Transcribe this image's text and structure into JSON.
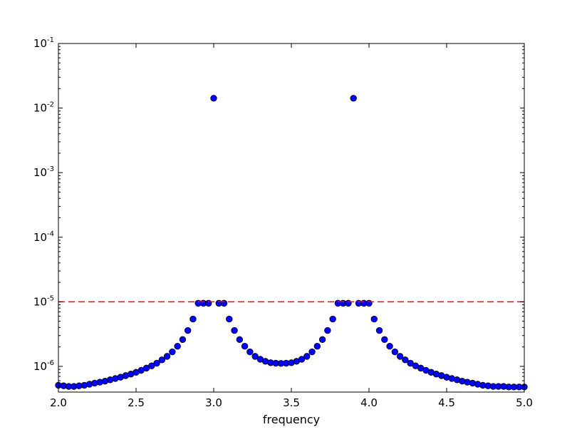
{
  "chart_data": {
    "type": "scatter",
    "title": "",
    "xlabel": "frequency",
    "ylabel": "",
    "xlim": [
      2.0,
      5.0
    ],
    "ylim": [
      4e-07,
      0.1
    ],
    "yscale": "log",
    "x_ticks": [
      "2.0",
      "2.5",
      "3.0",
      "3.5",
      "4.0",
      "4.5",
      "5.0"
    ],
    "y_ticks": [
      {
        "base": "10",
        "exp": "-6"
      },
      {
        "base": "10",
        "exp": "-5"
      },
      {
        "base": "10",
        "exp": "-4"
      },
      {
        "base": "10",
        "exp": "-3"
      },
      {
        "base": "10",
        "exp": "-2"
      },
      {
        "base": "10",
        "exp": "-1"
      }
    ],
    "grid": false,
    "colors": {
      "marker_fill": "#0000ff",
      "marker_edge": "#000000",
      "threshold_line": "#ff0000"
    },
    "threshold": {
      "y": 1e-05,
      "style": "dashed"
    },
    "series": [
      {
        "x": [
          2.0,
          2.0333,
          2.0667,
          2.1,
          2.1333,
          2.1667,
          2.2,
          2.2333,
          2.2667,
          2.3,
          2.3333,
          2.3667,
          2.4,
          2.4333,
          2.4667,
          2.5,
          2.5333,
          2.5667,
          2.6,
          2.6333,
          2.6667,
          2.7,
          2.7333,
          2.7667,
          2.8,
          2.8333,
          2.8667,
          2.9,
          2.9333,
          2.9667,
          3.0,
          3.0333,
          3.0667,
          3.1,
          3.1333,
          3.1667,
          3.2,
          3.2333,
          3.2667,
          3.3,
          3.3333,
          3.3667,
          3.4,
          3.4333,
          3.4667,
          3.5,
          3.5333,
          3.5667,
          3.6,
          3.6333,
          3.6667,
          3.7,
          3.7333,
          3.7667,
          3.8,
          3.8333,
          3.8667,
          3.9,
          3.9333,
          3.9667,
          4.0,
          4.0333,
          4.0667,
          4.1,
          4.1333,
          4.1667,
          4.2,
          4.2333,
          4.2667,
          4.3,
          4.3333,
          4.3667,
          4.4,
          4.4333,
          4.4667,
          4.5,
          4.5333,
          4.5667,
          4.6,
          4.6333,
          4.6667,
          4.7,
          4.7333,
          4.7667,
          4.8,
          4.8333,
          4.8667,
          4.9,
          4.9333,
          4.9667,
          5.0
        ],
        "y": [
          5.1e-07,
          5e-07,
          4.9e-07,
          4.9e-07,
          5e-07,
          5.1e-07,
          5.3e-07,
          5.5e-07,
          5.7e-07,
          5.9e-07,
          6.2e-07,
          6.5e-07,
          6.8e-07,
          7.2e-07,
          7.6e-07,
          8.1e-07,
          8.7e-07,
          9.4e-07,
          1.02e-06,
          1.12e-06,
          1.26e-06,
          1.43e-06,
          1.68e-06,
          2.05e-06,
          2.6e-06,
          3.6e-06,
          5.4e-06,
          9.5e-06,
          9.5e-06,
          9.5e-06,
          0.0142,
          9.5e-06,
          9.5e-06,
          5.4e-06,
          3.6e-06,
          2.6e-06,
          2.05e-06,
          1.68e-06,
          1.43e-06,
          1.29e-06,
          1.2e-06,
          1.14e-06,
          1.12e-06,
          1.11e-06,
          1.12e-06,
          1.14e-06,
          1.2e-06,
          1.29e-06,
          1.43e-06,
          1.68e-06,
          2.05e-06,
          2.6e-06,
          3.6e-06,
          5.4e-06,
          9.5e-06,
          9.5e-06,
          9.5e-06,
          0.0142,
          9.5e-06,
          9.5e-06,
          9.5e-06,
          5.4e-06,
          3.6e-06,
          2.6e-06,
          2.05e-06,
          1.68e-06,
          1.43e-06,
          1.26e-06,
          1.12e-06,
          1.02e-06,
          9.4e-07,
          8.7e-07,
          8.1e-07,
          7.6e-07,
          7.2e-07,
          6.8e-07,
          6.5e-07,
          6.2e-07,
          5.9e-07,
          5.7e-07,
          5.5e-07,
          5.3e-07,
          5.1e-07,
          5e-07,
          4.9e-07,
          4.9e-07,
          4.9e-07,
          4.8e-07,
          4.8e-07,
          4.8e-07,
          4.8e-07
        ]
      }
    ]
  }
}
